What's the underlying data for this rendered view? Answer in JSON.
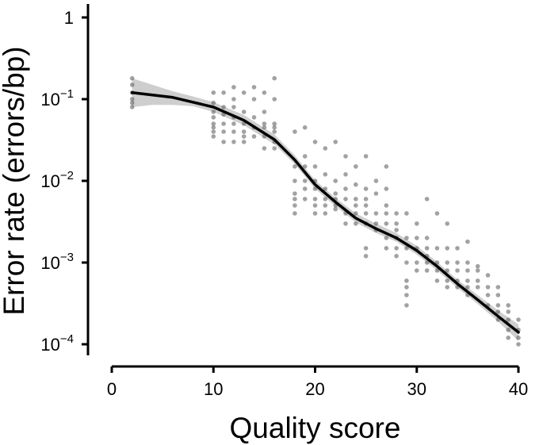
{
  "chart_data": {
    "type": "scatter",
    "title": "",
    "xlabel": "Quality score",
    "ylabel": "Error rate (errors/bp)",
    "xlim": [
      -1,
      41
    ],
    "ylim": [
      7e-05,
      2
    ],
    "yscale": "log",
    "grid": false,
    "xticks": [
      {
        "value": 0,
        "label": "0"
      },
      {
        "value": 10,
        "label": "10"
      },
      {
        "value": 20,
        "label": "20"
      },
      {
        "value": 30,
        "label": "30"
      },
      {
        "value": 40,
        "label": "40"
      }
    ],
    "yticks": [
      {
        "value": 1,
        "base": "1",
        "exp": ""
      },
      {
        "value": 0.1,
        "base": "10",
        "exp": "−1"
      },
      {
        "value": 0.01,
        "base": "10",
        "exp": "−2"
      },
      {
        "value": 0.001,
        "base": "10",
        "exp": "−3"
      },
      {
        "value": 0.0001,
        "base": "10",
        "exp": "−4"
      }
    ],
    "points": [
      [
        2,
        0.18
      ],
      [
        2,
        0.15
      ],
      [
        2,
        0.12
      ],
      [
        2,
        0.1
      ],
      [
        2,
        0.09
      ],
      [
        2,
        0.08
      ],
      [
        10,
        0.12
      ],
      [
        10,
        0.09
      ],
      [
        10,
        0.07
      ],
      [
        10,
        0.06
      ],
      [
        10,
        0.05
      ],
      [
        10,
        0.045
      ],
      [
        10,
        0.04
      ],
      [
        10,
        0.035
      ],
      [
        11,
        0.12
      ],
      [
        11,
        0.08
      ],
      [
        11,
        0.065
      ],
      [
        11,
        0.05
      ],
      [
        11,
        0.04
      ],
      [
        11,
        0.03
      ],
      [
        12,
        0.14
      ],
      [
        12,
        0.1
      ],
      [
        12,
        0.08
      ],
      [
        12,
        0.06
      ],
      [
        12,
        0.05
      ],
      [
        12,
        0.04
      ],
      [
        12,
        0.03
      ],
      [
        13,
        0.12
      ],
      [
        13,
        0.07
      ],
      [
        13,
        0.05
      ],
      [
        13,
        0.04
      ],
      [
        13,
        0.035
      ],
      [
        13,
        0.03
      ],
      [
        14,
        0.14
      ],
      [
        14,
        0.1
      ],
      [
        14,
        0.06
      ],
      [
        14,
        0.045
      ],
      [
        14,
        0.035
      ],
      [
        15,
        0.12
      ],
      [
        15,
        0.07
      ],
      [
        15,
        0.05
      ],
      [
        15,
        0.045
      ],
      [
        15,
        0.035
      ],
      [
        15,
        0.025
      ],
      [
        16,
        0.18
      ],
      [
        16,
        0.1
      ],
      [
        16,
        0.05
      ],
      [
        16,
        0.045
      ],
      [
        16,
        0.04
      ],
      [
        16,
        0.03
      ],
      [
        16,
        0.025
      ],
      [
        18,
        0.04
      ],
      [
        18,
        0.015
      ],
      [
        18,
        0.01
      ],
      [
        18,
        0.007
      ],
      [
        18,
        0.006
      ],
      [
        18,
        0.005
      ],
      [
        18,
        0.004
      ],
      [
        19,
        0.045
      ],
      [
        19,
        0.02
      ],
      [
        19,
        0.015
      ],
      [
        19,
        0.01
      ],
      [
        19,
        0.008
      ],
      [
        19,
        0.006
      ],
      [
        20,
        0.03
      ],
      [
        20,
        0.015
      ],
      [
        20,
        0.01
      ],
      [
        20,
        0.008
      ],
      [
        20,
        0.006
      ],
      [
        20,
        0.005
      ],
      [
        20,
        0.004
      ],
      [
        21,
        0.025
      ],
      [
        21,
        0.012
      ],
      [
        21,
        0.008
      ],
      [
        21,
        0.006
      ],
      [
        21,
        0.005
      ],
      [
        21,
        0.004
      ],
      [
        22,
        0.03
      ],
      [
        22,
        0.01
      ],
      [
        22,
        0.007
      ],
      [
        22,
        0.006
      ],
      [
        22,
        0.005
      ],
      [
        22,
        0.0045
      ],
      [
        23,
        0.02
      ],
      [
        23,
        0.012
      ],
      [
        23,
        0.008
      ],
      [
        23,
        0.006
      ],
      [
        23,
        0.004
      ],
      [
        23,
        0.003
      ],
      [
        24,
        0.015
      ],
      [
        24,
        0.009
      ],
      [
        24,
        0.006
      ],
      [
        24,
        0.005
      ],
      [
        24,
        0.004
      ],
      [
        24,
        0.003
      ],
      [
        25,
        0.02
      ],
      [
        25,
        0.008
      ],
      [
        25,
        0.006
      ],
      [
        25,
        0.005
      ],
      [
        25,
        0.004
      ],
      [
        25,
        0.003
      ],
      [
        25,
        0.0015
      ],
      [
        25,
        0.0012
      ],
      [
        26,
        0.01
      ],
      [
        26,
        0.007
      ],
      [
        26,
        0.004
      ],
      [
        26,
        0.003
      ],
      [
        26,
        0.0025
      ],
      [
        27,
        0.015
      ],
      [
        27,
        0.008
      ],
      [
        27,
        0.005
      ],
      [
        27,
        0.004
      ],
      [
        27,
        0.003
      ],
      [
        27,
        0.002
      ],
      [
        27,
        0.0015
      ],
      [
        28,
        0.004
      ],
      [
        28,
        0.003
      ],
      [
        28,
        0.0025
      ],
      [
        28,
        0.002
      ],
      [
        28,
        0.0015
      ],
      [
        28,
        0.0012
      ],
      [
        29,
        0.004
      ],
      [
        29,
        0.002
      ],
      [
        29,
        0.0015
      ],
      [
        29,
        0.001
      ],
      [
        29,
        0.0006
      ],
      [
        29,
        0.0005
      ],
      [
        29,
        0.0004
      ],
      [
        29,
        0.0003
      ],
      [
        30,
        0.003
      ],
      [
        30,
        0.002
      ],
      [
        30,
        0.0015
      ],
      [
        30,
        0.001
      ],
      [
        30,
        0.0008
      ],
      [
        31,
        0.006
      ],
      [
        31,
        0.002
      ],
      [
        31,
        0.0015
      ],
      [
        31,
        0.0012
      ],
      [
        31,
        0.001
      ],
      [
        31,
        0.0008
      ],
      [
        32,
        0.004
      ],
      [
        32,
        0.0015
      ],
      [
        32,
        0.001
      ],
      [
        32,
        0.0008
      ],
      [
        32,
        0.0006
      ],
      [
        33,
        0.003
      ],
      [
        33,
        0.0015
      ],
      [
        33,
        0.001
      ],
      [
        33,
        0.0008
      ],
      [
        33,
        0.0006
      ],
      [
        33,
        0.0005
      ],
      [
        34,
        0.0015
      ],
      [
        34,
        0.001
      ],
      [
        34,
        0.0008
      ],
      [
        34,
        0.0006
      ],
      [
        34,
        0.0005
      ],
      [
        35,
        0.0018
      ],
      [
        35,
        0.001
      ],
      [
        35,
        0.0008
      ],
      [
        35,
        0.0006
      ],
      [
        35,
        0.0005
      ],
      [
        35,
        0.0004
      ],
      [
        36,
        0.0009
      ],
      [
        36,
        0.0008
      ],
      [
        36,
        0.0006
      ],
      [
        36,
        0.0005
      ],
      [
        37,
        0.0007
      ],
      [
        37,
        0.0005
      ],
      [
        37,
        0.0004
      ],
      [
        37,
        0.0003
      ],
      [
        38,
        0.0005
      ],
      [
        38,
        0.0004
      ],
      [
        38,
        0.0003
      ],
      [
        38,
        0.00025
      ],
      [
        38,
        0.0002
      ],
      [
        39,
        0.0003
      ],
      [
        39,
        0.00025
      ],
      [
        39,
        0.0002
      ],
      [
        39,
        0.00015
      ],
      [
        39,
        0.00012
      ],
      [
        40,
        0.0002
      ],
      [
        40,
        0.00015
      ],
      [
        40,
        0.00012
      ],
      [
        40,
        0.0001
      ]
    ],
    "fit_line": [
      [
        2,
        0.12
      ],
      [
        6,
        0.105
      ],
      [
        10,
        0.08
      ],
      [
        13,
        0.055
      ],
      [
        16,
        0.032
      ],
      [
        18,
        0.018
      ],
      [
        20,
        0.009
      ],
      [
        22,
        0.0055
      ],
      [
        24,
        0.0035
      ],
      [
        26,
        0.0026
      ],
      [
        28,
        0.002
      ],
      [
        30,
        0.0014
      ],
      [
        32,
        0.0009
      ],
      [
        34,
        0.00055
      ],
      [
        36,
        0.00035
      ],
      [
        38,
        0.00022
      ],
      [
        40,
        0.00014
      ]
    ],
    "confidence_band": [
      [
        2,
        0.08,
        0.18
      ],
      [
        4,
        0.085,
        0.15
      ],
      [
        6,
        0.085,
        0.125
      ],
      [
        8,
        0.082,
        0.108
      ],
      [
        10,
        0.07,
        0.092
      ],
      [
        13,
        0.048,
        0.064
      ],
      [
        16,
        0.028,
        0.037
      ],
      [
        18,
        0.016,
        0.0205
      ],
      [
        20,
        0.008,
        0.0102
      ],
      [
        22,
        0.0049,
        0.0062
      ],
      [
        24,
        0.0031,
        0.004
      ],
      [
        26,
        0.0023,
        0.003
      ],
      [
        28,
        0.0018,
        0.0023
      ],
      [
        30,
        0.00125,
        0.0016
      ],
      [
        32,
        0.0008,
        0.00102
      ],
      [
        34,
        0.00049,
        0.00062
      ],
      [
        36,
        0.00031,
        0.0004
      ],
      [
        38,
        0.00019,
        0.00026
      ],
      [
        40,
        0.00011,
        0.000175
      ]
    ],
    "colors": {
      "points": "#555555",
      "line": "#000000",
      "band": "#bdbdbd",
      "axis": "#000000"
    }
  }
}
